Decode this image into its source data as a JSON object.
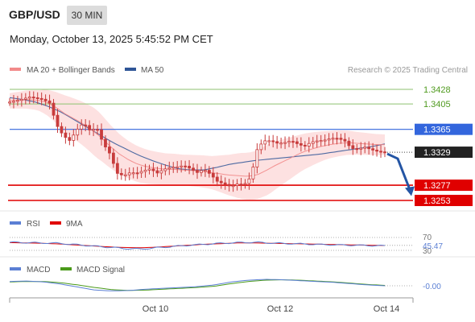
{
  "header": {
    "symbol": "GBP/USD",
    "timeframe": "30 MIN",
    "datetime": "Monday, October 13, 2025 5:45:52 PM CET",
    "credit": "Research © 2025 Trading Central"
  },
  "colors": {
    "ma20": "#f28a8a",
    "ma50": "#2f5597",
    "bollinger_fill": "#fde1e1",
    "resistance": "#8dc26f",
    "pivot": "#3366dd",
    "support": "#e00000",
    "current": "#222222",
    "rsi": "#5b7fd4",
    "rsi_ma": "#e00000",
    "macd": "#5b7fd4",
    "macd_signal": "#4a9a1a",
    "arrow": "#2455a4",
    "candle": "#c83c3c"
  },
  "chart_data": [
    {
      "type": "candlestick",
      "title": "GBP/USD",
      "timeframe": "30 MIN",
      "legend": [
        "MA 20 + Bollinger Bands",
        "MA 50"
      ],
      "x_ticks": [
        "Oct 10",
        "Oct 12",
        "Oct 14"
      ],
      "ylim": [
        1.3245,
        1.344
      ],
      "levels": [
        {
          "label": "1.3428",
          "value": 1.3428,
          "kind": "resistance"
        },
        {
          "label": "1.3405",
          "value": 1.3405,
          "kind": "resistance"
        },
        {
          "label": "1.3365",
          "value": 1.3365,
          "kind": "pivot"
        },
        {
          "label": "1.3329",
          "value": 1.3329,
          "kind": "current"
        },
        {
          "label": "1.3277",
          "value": 1.3277,
          "kind": "support"
        },
        {
          "label": "1.3253",
          "value": 1.3253,
          "kind": "support"
        }
      ],
      "close_series": [
        1.3408,
        1.341,
        1.3413,
        1.3416,
        1.3414,
        1.3412,
        1.3406,
        1.3372,
        1.3355,
        1.3347,
        1.3364,
        1.3375,
        1.3363,
        1.3367,
        1.3342,
        1.3326,
        1.3296,
        1.3292,
        1.3297,
        1.3296,
        1.33,
        1.3303,
        1.3296,
        1.3302,
        1.3305,
        1.3306,
        1.3308,
        1.3303,
        1.3297,
        1.3302,
        1.3294,
        1.3283,
        1.3279,
        1.3275,
        1.3279,
        1.3278,
        1.329,
        1.3336,
        1.3347,
        1.3347,
        1.3343,
        1.3344,
        1.3347,
        1.3342,
        1.3338,
        1.3345,
        1.3347,
        1.3348,
        1.3351,
        1.3351,
        1.3347,
        1.3335,
        1.3334,
        1.3337,
        1.3333,
        1.333,
        1.3329
      ],
      "ma20_series": [
        1.341,
        1.3411,
        1.3412,
        1.3411,
        1.3408,
        1.34,
        1.339,
        1.3382,
        1.3374,
        1.3364,
        1.3352,
        1.3338,
        1.3326,
        1.3317,
        1.331,
        1.3306,
        1.3304,
        1.3302,
        1.3302,
        1.3301,
        1.33,
        1.3299,
        1.3297,
        1.3295,
        1.3293,
        1.3292,
        1.3291,
        1.3293,
        1.33,
        1.3308,
        1.3315,
        1.3322,
        1.3329,
        1.3334,
        1.3338,
        1.3341,
        1.3343,
        1.3344,
        1.3343,
        1.3342,
        1.3341,
        1.3341
      ],
      "ma50_series": [
        1.3415,
        1.3412,
        1.3408,
        1.3401,
        1.3392,
        1.338,
        1.3368,
        1.3356,
        1.3344,
        1.3334,
        1.3324,
        1.3316,
        1.3309,
        1.3303,
        1.3301,
        1.3301,
        1.3305,
        1.331,
        1.3313,
        1.3316,
        1.3318,
        1.332,
        1.3322,
        1.3324,
        1.3326,
        1.3329,
        1.3332,
        1.3335,
        1.3338,
        1.3342
      ],
      "forecast": {
        "from": 1.3329,
        "to": 1.326,
        "direction": "down"
      }
    },
    {
      "type": "line",
      "name": "RSI",
      "legend": [
        "RSI",
        "9MA"
      ],
      "levels": [
        70,
        30
      ],
      "current_value": 45.47,
      "rsi_series": [
        55,
        54,
        53,
        52,
        48,
        44,
        40,
        36,
        34,
        38,
        42,
        46,
        49,
        52,
        54,
        55,
        53,
        51,
        50,
        48,
        47,
        46,
        45,
        44
      ],
      "ma_series": [
        54,
        53,
        52,
        50,
        47,
        44,
        41,
        39,
        38,
        40,
        43,
        46,
        49,
        51,
        53,
        53,
        52,
        51,
        50,
        49,
        48,
        47,
        46,
        45
      ]
    },
    {
      "type": "line",
      "name": "MACD",
      "legend": [
        "MACD",
        "MACD Signal"
      ],
      "current_value": -0.0,
      "macd_series": [
        0.001,
        0.0011,
        0.0009,
        0.0004,
        -0.0003,
        -0.001,
        -0.0012,
        -0.0011,
        -0.0008,
        -0.0006,
        -0.0004,
        -0.0002,
        0.0002,
        0.0009,
        0.0013,
        0.0015,
        0.0014,
        0.0012,
        0.001,
        0.0008,
        0.0005,
        0.0002,
        0.0
      ],
      "signal_series": [
        0.0009,
        0.001,
        0.001,
        0.0007,
        0.0002,
        -0.0004,
        -0.0009,
        -0.0011,
        -0.001,
        -0.0008,
        -0.0006,
        -0.0004,
        -0.0001,
        0.0005,
        0.001,
        0.0013,
        0.0014,
        0.0013,
        0.0011,
        0.0009,
        0.0006,
        0.0003,
        0.0001
      ]
    }
  ],
  "rsi_panel": {
    "label_rsi": "RSI",
    "label_ma": "9MA",
    "tick_70": "70",
    "tick_30": "30",
    "value_label": "45.47"
  },
  "macd_panel": {
    "label_macd": "MACD",
    "label_signal": "MACD Signal",
    "value_label": "-0.00"
  }
}
